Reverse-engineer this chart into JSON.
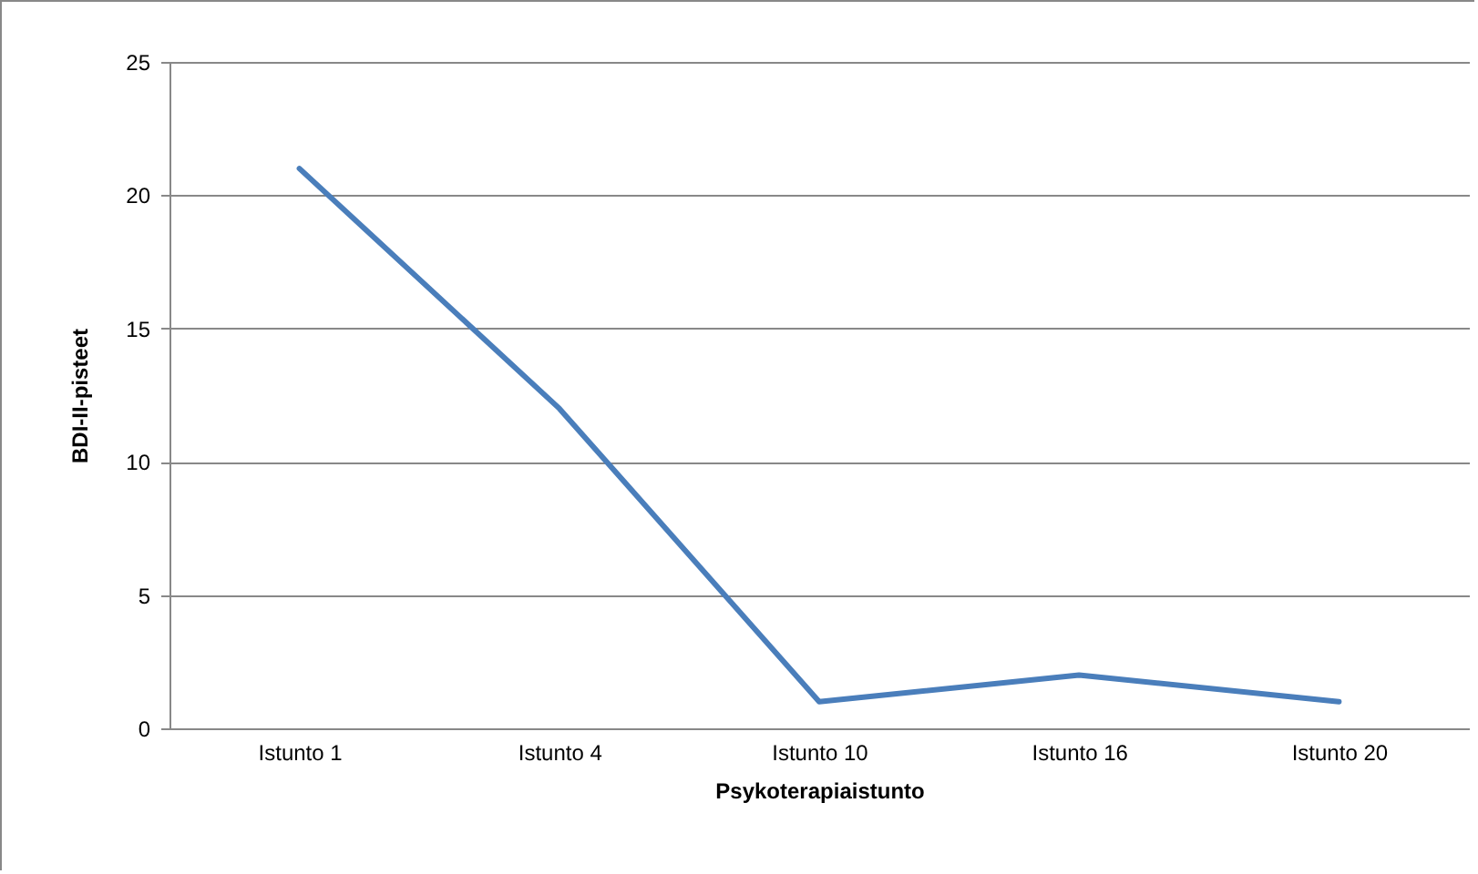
{
  "chart_data": {
    "type": "line",
    "xlabel": "Psykoterapiaistunto",
    "ylabel": "BDI-II-pisteet",
    "categories": [
      "Istunto 1",
      "Istunto 4",
      "Istunto 10",
      "Istunto 16",
      "Istunto 20"
    ],
    "series": [
      {
        "color": "#4a7ebb",
        "values": [
          21,
          12,
          1,
          2,
          1
        ]
      }
    ],
    "ylim": [
      0,
      25
    ],
    "yticks": [
      0,
      5,
      10,
      15,
      20,
      25
    ],
    "grid": "y",
    "legend": false,
    "marker": "none",
    "line_style": "solid"
  }
}
